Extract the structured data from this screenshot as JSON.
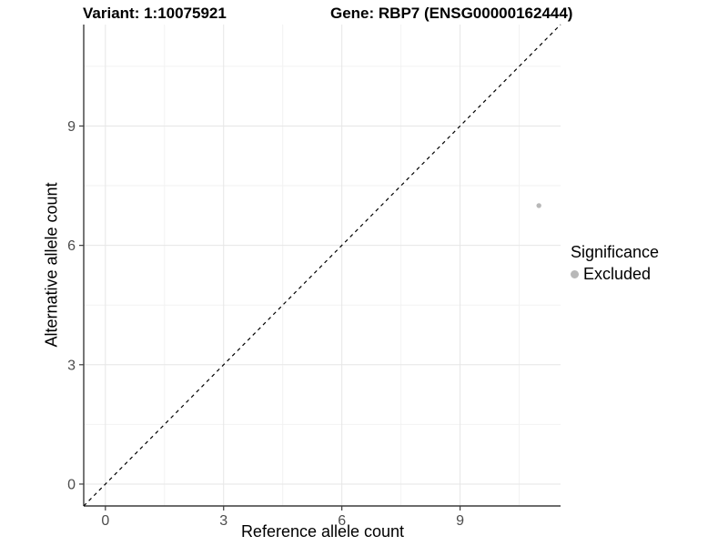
{
  "figure": {
    "background": "#ffffff",
    "title_left": "Variant: 1:10075921",
    "title_right": "Gene: RBP7 (ENSG00000162444)"
  },
  "chart_data": {
    "type": "scatter",
    "xlabel": "Reference allele count",
    "ylabel": "Alternative allele count",
    "xlim": [
      -0.55,
      11.55
    ],
    "ylim": [
      -0.55,
      11.55
    ],
    "x_ticks": [
      0,
      3,
      6,
      9
    ],
    "y_ticks": [
      0,
      3,
      6,
      9
    ],
    "x_minor": [
      1.5,
      4.5,
      7.5,
      10.5
    ],
    "y_minor": [
      1.5,
      4.5,
      7.5,
      10.5
    ],
    "grid": true,
    "series": [
      {
        "name": "Excluded",
        "color": "#b8b8b8",
        "points": [
          {
            "x": 11,
            "y": 7
          }
        ]
      }
    ],
    "reference_line": {
      "kind": "identity",
      "style": "dashed",
      "color": "#000000",
      "x1": -0.55,
      "y1": -0.55,
      "x2": 11.55,
      "y2": 11.55
    },
    "legend": {
      "title": "Significance",
      "position": "right",
      "entries": [
        {
          "label": "Excluded",
          "color": "#b8b8b8"
        }
      ]
    }
  },
  "style": {
    "axis_color": "#3c3c3c",
    "tick_label_color": "#4d4d4d",
    "grid_major": "#e6e6e6",
    "grid_minor": "#f2f2f2",
    "point_radius": 2.7
  }
}
